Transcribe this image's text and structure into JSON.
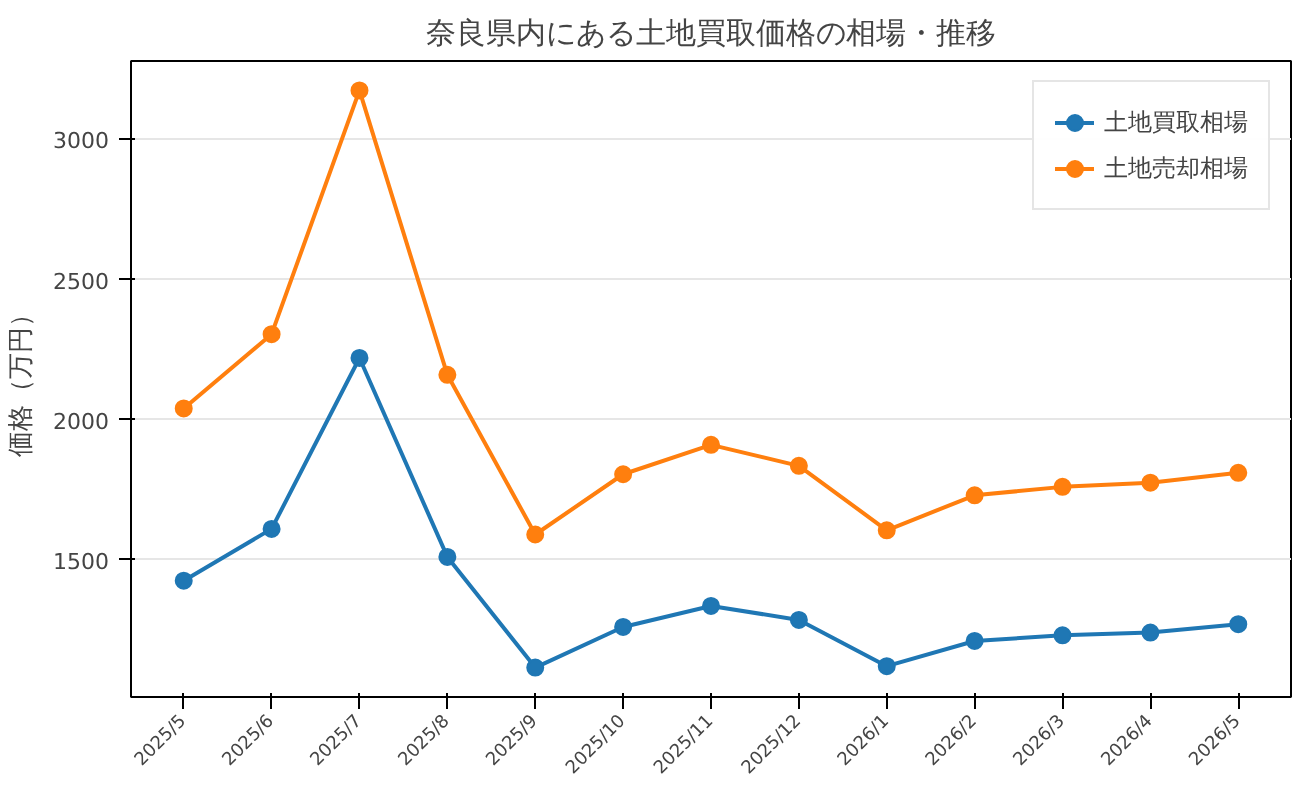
{
  "chart_data": {
    "type": "line",
    "title": "奈良県内にある土地買取価格の相場・推移",
    "ylabel": "価格（万円）",
    "categories": [
      "2025/5",
      "2025/6",
      "2025/7",
      "2025/8",
      "2025/9",
      "2025/10",
      "2025/11",
      "2025/12",
      "2026/1",
      "2026/2",
      "2026/3",
      "2026/4",
      "2026/5"
    ],
    "series": [
      {
        "name": "土地買取相場",
        "color": "#1f77b4",
        "values": [
          1425,
          1610,
          2220,
          1510,
          1115,
          1260,
          1335,
          1285,
          1120,
          1210,
          1230,
          1240,
          1270
        ]
      },
      {
        "name": "土地売却相場",
        "color": "#ff7f0e",
        "values": [
          2040,
          2305,
          3175,
          2160,
          1590,
          1805,
          1910,
          1835,
          1605,
          1730,
          1760,
          1775,
          1810
        ]
      }
    ],
    "ylim": [
      1010,
      3280
    ],
    "yticks": [
      1500,
      2000,
      2500,
      3000
    ],
    "grid": "y",
    "legend": "top right",
    "marker": "circle",
    "line_style": "solid"
  }
}
